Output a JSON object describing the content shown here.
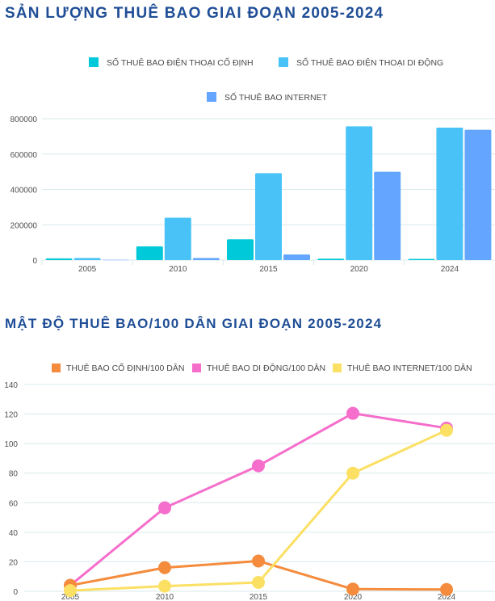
{
  "bar_title": "SẢN LƯỢNG THUÊ BAO GIAI ĐOẠN 2005-2024",
  "line_title": "MẬT ĐỘ THUÊ BAO/100 DÂN GIAI ĐOẠN 2005-2024",
  "chart_data": [
    {
      "type": "bar",
      "title": "SẢN LƯỢNG THUÊ BAO GIAI ĐOẠN 2005-2024",
      "categories": [
        "2005",
        "2010",
        "2015",
        "2020",
        "2024"
      ],
      "series": [
        {
          "name": "SỐ THUÊ BAO ĐIỆN THOẠI CỐ ĐỊNH",
          "color": "#00c9d9",
          "values": [
            10000,
            78000,
            118000,
            8000,
            7000
          ]
        },
        {
          "name": "SỐ THUÊ BAO ĐIỆN THOẠI DI ĐỘNG",
          "color": "#49c3f7",
          "values": [
            12000,
            240000,
            492000,
            757000,
            750000
          ]
        },
        {
          "name": "SỐ THUÊ BAO INTERNET",
          "color": "#64a6ff",
          "values": [
            2000,
            12000,
            32000,
            500000,
            738000
          ]
        }
      ],
      "ylim": [
        0,
        800000
      ],
      "yticks": [
        "0",
        "200000",
        "400000",
        "600000",
        "800000"
      ],
      "grid": true,
      "legend": "top"
    },
    {
      "type": "line",
      "title": "MẬT ĐỘ THUÊ BAO/100 DÂN GIAI ĐOẠN 2005-2024",
      "categories": [
        "2005",
        "2010",
        "2015",
        "2020",
        "2024"
      ],
      "series": [
        {
          "name": "THUÊ BAO CỐ ĐỊNH/100 DÂN",
          "color": "#f58b3c",
          "values": [
            4,
            16,
            20.5,
            1.5,
            1.2
          ]
        },
        {
          "name": "THUÊ BAO DI ĐỘNG/100 DÂN",
          "color": "#f56ecb",
          "values": [
            4,
            56.5,
            85,
            120.5,
            110.5
          ]
        },
        {
          "name": "THUÊ BAO INTERNET/100 DÂN",
          "color": "#fbe064",
          "values": [
            0.5,
            3.5,
            6,
            80,
            109
          ]
        }
      ],
      "ylim": [
        0,
        140
      ],
      "yticks": [
        "0",
        "20",
        "40",
        "60",
        "80",
        "100",
        "120",
        "140"
      ],
      "grid": true,
      "legend": "top"
    }
  ]
}
